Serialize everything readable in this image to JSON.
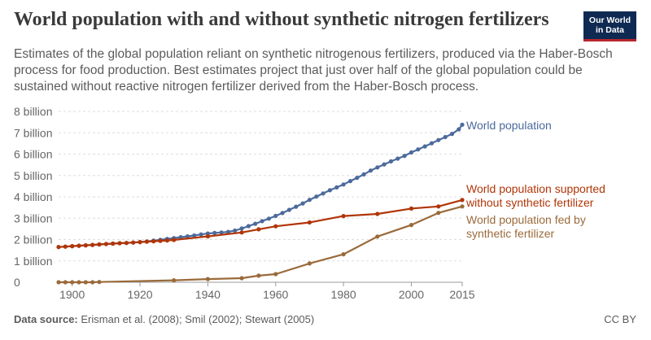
{
  "header": {
    "title": "World population with and without synthetic nitrogen fertilizers",
    "subtitle": "Estimates of the global population reliant on synthetic nitrogenous fertilizers, produced via the Haber-Bosch process for food production. Best estimates project that just over half of the global population could be sustained without reactive nitrogen fertilizer derived from the Haber-Bosch process.",
    "logo_line1": "Our World",
    "logo_line2": "in Data"
  },
  "footer": {
    "source_label": "Data source:",
    "source_text": "Erisman et al. (2008); Smil (2002); Stewart (2005)",
    "license": "CC BY"
  },
  "chart_data": {
    "type": "line",
    "title": "World population with and without synthetic nitrogen fertilizers",
    "xlabel": "",
    "ylabel": "",
    "xlim": [
      1896,
      2015
    ],
    "ylim": [
      0,
      8000000000
    ],
    "x_ticks": [
      1900,
      1920,
      1940,
      1960,
      1980,
      2000,
      2015
    ],
    "y_ticks": [
      {
        "value": 0,
        "label": "0"
      },
      {
        "value": 1000000000,
        "label": "1 billion"
      },
      {
        "value": 2000000000,
        "label": "2 billion"
      },
      {
        "value": 3000000000,
        "label": "3 billion"
      },
      {
        "value": 4000000000,
        "label": "4 billion"
      },
      {
        "value": 5000000000,
        "label": "5 billion"
      },
      {
        "value": 6000000000,
        "label": "6 billion"
      },
      {
        "value": 7000000000,
        "label": "7 billion"
      },
      {
        "value": 8000000000,
        "label": "8 billion"
      }
    ],
    "grid": true,
    "series": [
      {
        "name": "World population",
        "label_lines": [
          "World population"
        ],
        "color": "#4c6a9c",
        "x": [
          1896,
          1898,
          1900,
          1902,
          1904,
          1906,
          1908,
          1910,
          1912,
          1914,
          1916,
          1918,
          1920,
          1922,
          1924,
          1926,
          1928,
          1930,
          1932,
          1934,
          1936,
          1938,
          1940,
          1942,
          1944,
          1946,
          1948,
          1950,
          1952,
          1954,
          1956,
          1958,
          1960,
          1962,
          1964,
          1966,
          1968,
          1970,
          1972,
          1974,
          1976,
          1978,
          1980,
          1982,
          1984,
          1986,
          1988,
          1990,
          1992,
          1994,
          1996,
          1998,
          2000,
          2002,
          2004,
          2006,
          2008,
          2010,
          2012,
          2014,
          2015
        ],
        "y": [
          1.65,
          1.67,
          1.69,
          1.71,
          1.73,
          1.75,
          1.77,
          1.79,
          1.81,
          1.83,
          1.84,
          1.86,
          1.88,
          1.91,
          1.95,
          1.99,
          2.03,
          2.07,
          2.11,
          2.15,
          2.19,
          2.24,
          2.28,
          2.31,
          2.33,
          2.36,
          2.42,
          2.52,
          2.63,
          2.74,
          2.86,
          2.98,
          3.11,
          3.24,
          3.39,
          3.54,
          3.69,
          3.86,
          4.01,
          4.16,
          4.31,
          4.44,
          4.58,
          4.74,
          4.89,
          5.05,
          5.23,
          5.38,
          5.52,
          5.66,
          5.79,
          5.92,
          6.08,
          6.22,
          6.36,
          6.51,
          6.66,
          6.8,
          6.95,
          7.16,
          7.38
        ]
      },
      {
        "name": "World population supported without synthetic fertilizer",
        "label_lines": [
          "World population supported",
          "without synthetic fertilizer"
        ],
        "color": "#b13507",
        "x": [
          1896,
          1898,
          1900,
          1902,
          1904,
          1906,
          1908,
          1910,
          1912,
          1914,
          1916,
          1918,
          1920,
          1922,
          1924,
          1926,
          1928,
          1930,
          1940,
          1950,
          1955,
          1960,
          1970,
          1980,
          1990,
          2000,
          2008,
          2015
        ],
        "y": [
          1.65,
          1.67,
          1.69,
          1.71,
          1.73,
          1.75,
          1.77,
          1.79,
          1.81,
          1.83,
          1.84,
          1.86,
          1.88,
          1.9,
          1.92,
          1.94,
          1.96,
          1.98,
          2.15,
          2.33,
          2.48,
          2.62,
          2.8,
          3.1,
          3.2,
          3.45,
          3.55,
          3.85
        ]
      },
      {
        "name": "World population fed by synthetic fertilizer",
        "label_lines": [
          "World population fed by",
          "synthetic fertilizer"
        ],
        "color": "#9a6a3a",
        "x": [
          1896,
          1898,
          1900,
          1902,
          1904,
          1906,
          1908,
          1930,
          1940,
          1950,
          1955,
          1960,
          1970,
          1980,
          1990,
          2000,
          2008,
          2015
        ],
        "y": [
          0,
          0,
          0,
          0,
          0,
          0,
          0.01,
          0.09,
          0.15,
          0.19,
          0.31,
          0.38,
          0.88,
          1.31,
          2.14,
          2.68,
          3.25,
          3.55
        ]
      }
    ]
  }
}
